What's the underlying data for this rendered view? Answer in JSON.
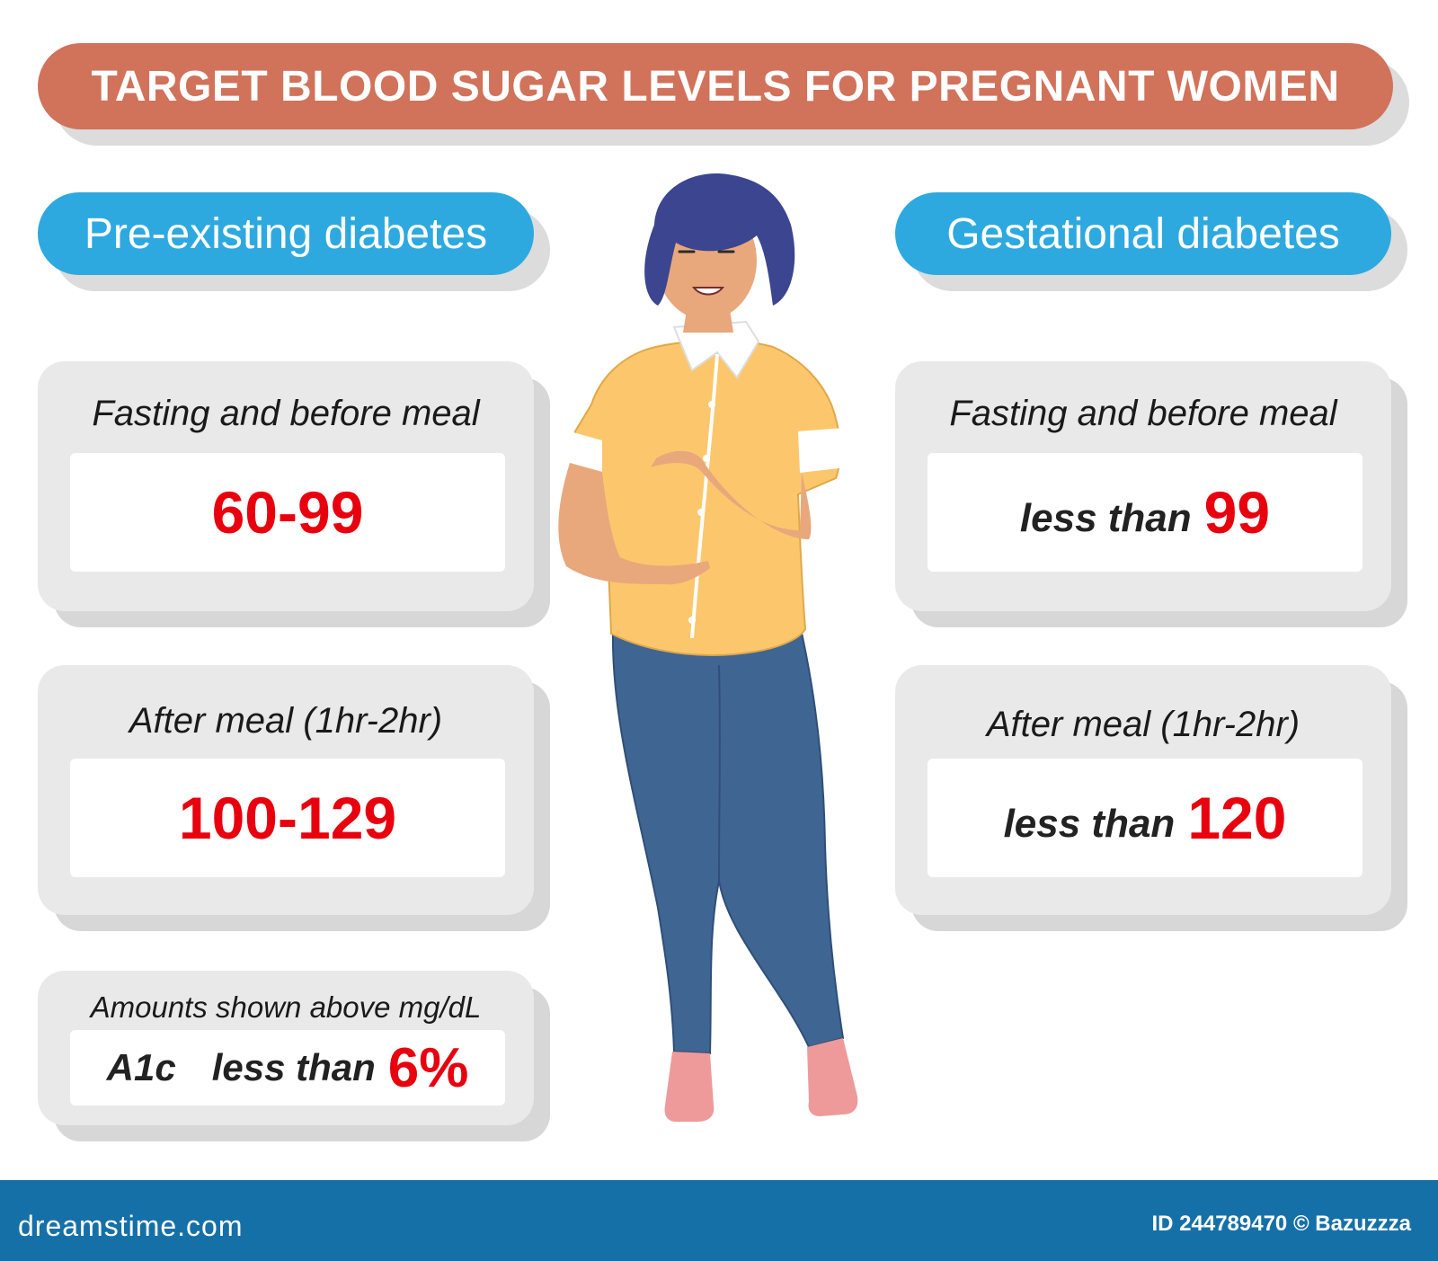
{
  "title": "TARGET BLOOD SUGAR LEVELS FOR PREGNANT WOMEN",
  "left_column": {
    "heading": "Pre-existing diabetes",
    "fasting": {
      "label": "Fasting and before meal",
      "value": "60-99"
    },
    "after_meal": {
      "label": "After meal (1hr-2hr)",
      "value": "100-129"
    },
    "a1c": {
      "note": "Amounts shown above mg/dL",
      "name": "A1c",
      "prefix": "less than",
      "value": "6%"
    }
  },
  "right_column": {
    "heading": "Gestational diabetes",
    "fasting": {
      "label": "Fasting and before meal",
      "prefix": "less than",
      "value": "99"
    },
    "after_meal": {
      "label": "After meal (1hr-2hr)",
      "prefix": "less than",
      "value": "120"
    }
  },
  "footer": {
    "brand": "dreamstime.com",
    "image_id": "ID 244789470 © Bazuzzza"
  },
  "colors": {
    "title_banner": "#d1725a",
    "pill": "#2da9e0",
    "value_red": "#e8000e",
    "footer": "#1670a8",
    "shirt": "#fcc76c",
    "jeans": "#3f6593",
    "hair": "#3b4590",
    "socks": "#ee9a9a"
  },
  "illustration": {
    "icon": "pregnant-woman-illustration"
  }
}
